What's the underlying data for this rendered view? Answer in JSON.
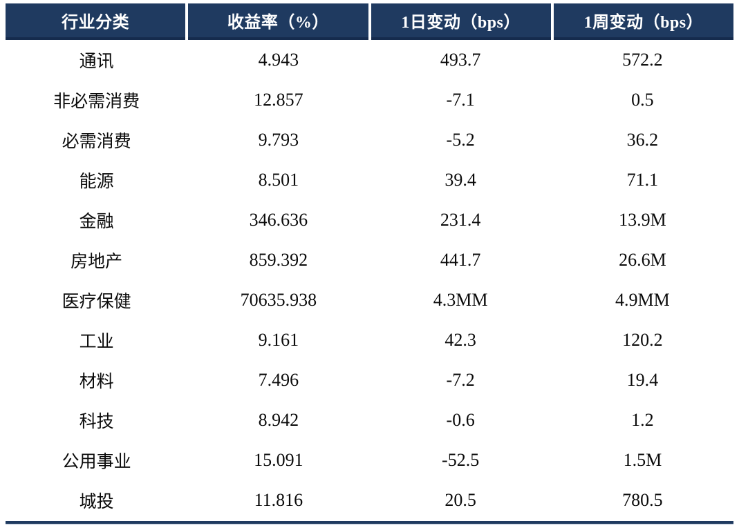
{
  "table": {
    "columns": [
      {
        "label": "行业分类"
      },
      {
        "label": "收益率（%）"
      },
      {
        "label": "1日变动（bps）"
      },
      {
        "label": "1周变动（bps）"
      }
    ],
    "rows": [
      {
        "industry": "通讯",
        "yield": "4.943",
        "change_1d": "493.7",
        "change_1w": "572.2"
      },
      {
        "industry": "非必需消费",
        "yield": "12.857",
        "change_1d": "-7.1",
        "change_1w": "0.5"
      },
      {
        "industry": "必需消费",
        "yield": "9.793",
        "change_1d": "-5.2",
        "change_1w": "36.2"
      },
      {
        "industry": "能源",
        "yield": "8.501",
        "change_1d": "39.4",
        "change_1w": "71.1"
      },
      {
        "industry": "金融",
        "yield": "346.636",
        "change_1d": "231.4",
        "change_1w": "13.9M"
      },
      {
        "industry": "房地产",
        "yield": "859.392",
        "change_1d": "441.7",
        "change_1w": "26.6M"
      },
      {
        "industry": "医疗保健",
        "yield": "70635.938",
        "change_1d": "4.3MM",
        "change_1w": "4.9MM"
      },
      {
        "industry": "工业",
        "yield": "9.161",
        "change_1d": "42.3",
        "change_1w": "120.2"
      },
      {
        "industry": "材料",
        "yield": "7.496",
        "change_1d": "-7.2",
        "change_1w": "19.4"
      },
      {
        "industry": "科技",
        "yield": "8.942",
        "change_1d": "-0.6",
        "change_1w": "1.2"
      },
      {
        "industry": "公用事业",
        "yield": "15.091",
        "change_1d": "-52.5",
        "change_1w": "1.5M"
      },
      {
        "industry": "城投",
        "yield": "11.816",
        "change_1d": "20.5",
        "change_1w": "780.5"
      }
    ]
  },
  "colors": {
    "header_bg": "#1f3a60",
    "header_border": "#152b4d",
    "header_text": "#ffffff",
    "body_bg": "#ffffff",
    "body_text": "#0b0b0b",
    "bottom_rule": "#1f3a60"
  }
}
